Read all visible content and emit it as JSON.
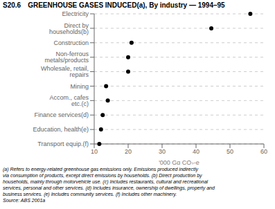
{
  "chart_data": {
    "type": "dot",
    "title": "S20.6",
    "subtitle": "GREENHOUSE GASES INDUCED(a), By industry — 1994–95",
    "categories": [
      "Electricity",
      "Direct by households(b)",
      "Construction",
      "Non-ferrous metals/products",
      "Wholesale, retail, repairs",
      "Mining",
      "Accom., cafes etc.(c)",
      "Finance services(d)",
      "Education, health(e)",
      "Transport equip.(f)"
    ],
    "values": [
      56.0,
      44.5,
      21.0,
      20.0,
      20.0,
      13.5,
      14.0,
      12.5,
      12.0,
      11.5
    ],
    "xlabel": "'000 Gg CO₂-e",
    "xlim": [
      10,
      60
    ],
    "xticks": [
      10,
      20,
      30,
      40,
      50,
      60
    ],
    "color": "#000000",
    "grid": true,
    "annotations": [
      "(a) Refers to energy-related greenhouse gas emissions only. Emissions produced indirectly",
      "via consumption of products, except direct emissions by households. (b) Direct production by",
      "households, mainly through motorvehicle use. (c) Includes restaurants, cultural and recreational",
      "services, personal and other services. (d) Includes insurance, ownership of dwellings, property and",
      "business services. (e) Includes community services. (f) Includes other machinery.",
      "Source: ABS 2001a"
    ]
  }
}
